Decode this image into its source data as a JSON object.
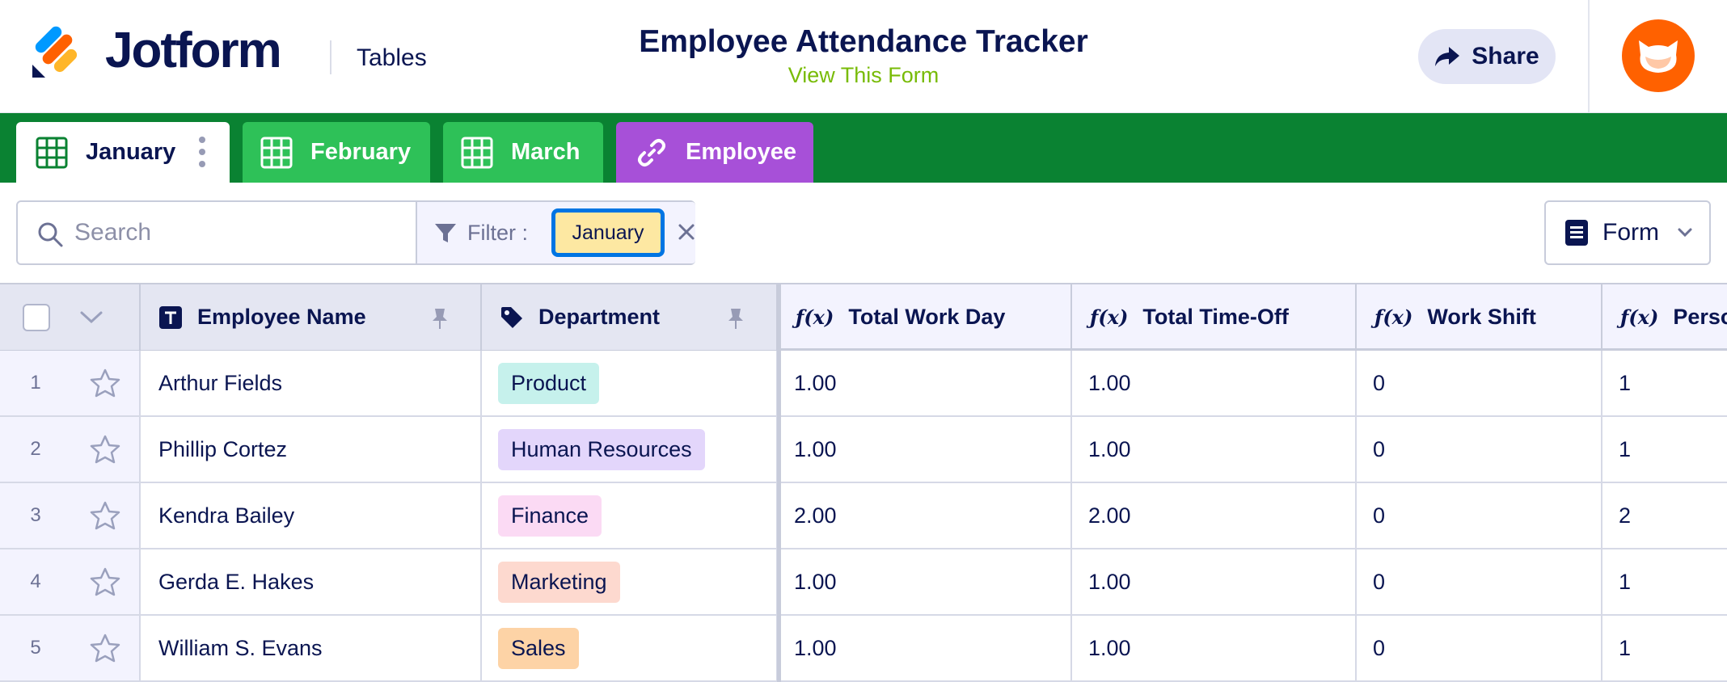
{
  "header": {
    "brand": "Jotform",
    "section": "Tables",
    "title": "Employee Attendance Tracker",
    "view_form": "View This Form",
    "share_label": "Share",
    "avatar_icon": "cat-avatar-icon"
  },
  "tabs": [
    {
      "label": "January",
      "icon": "grid-icon",
      "active": true
    },
    {
      "label": "February",
      "icon": "grid-icon",
      "active": false
    },
    {
      "label": "March",
      "icon": "grid-icon",
      "active": false
    },
    {
      "label": "Employee",
      "icon": "link-icon",
      "active": false
    }
  ],
  "toolbar": {
    "search_placeholder": "Search",
    "filter_label": "Filter :",
    "filter_value": "January",
    "form_label": "Form"
  },
  "table": {
    "columns": [
      {
        "label": "Employee Name",
        "icon": "text-type-icon",
        "pinned": true
      },
      {
        "label": "Department",
        "icon": "tag-icon",
        "pinned": true
      },
      {
        "label": "Total Work Day",
        "icon": "formula-icon"
      },
      {
        "label": "Total Time-Off",
        "icon": "formula-icon"
      },
      {
        "label": "Work Shift",
        "icon": "formula-icon"
      },
      {
        "label": "Person",
        "icon": "formula-icon"
      }
    ],
    "rows": [
      {
        "index": "1",
        "name": "Arthur Fields",
        "department": "Product",
        "dept_color": "#c6f1ec",
        "work_day": "1.00",
        "time_off": "1.00",
        "work_shift": "0",
        "person": "1"
      },
      {
        "index": "2",
        "name": "Phillip Cortez",
        "department": "Human Resources",
        "dept_color": "#e3d6fb",
        "work_day": "1.00",
        "time_off": "1.00",
        "work_shift": "0",
        "person": "1"
      },
      {
        "index": "3",
        "name": "Kendra Bailey",
        "department": "Finance",
        "dept_color": "#fbdaf4",
        "work_day": "2.00",
        "time_off": "2.00",
        "work_shift": "0",
        "person": "2"
      },
      {
        "index": "4",
        "name": "Gerda E. Hakes",
        "department": "Marketing",
        "dept_color": "#fdd9cf",
        "work_day": "1.00",
        "time_off": "1.00",
        "work_shift": "0",
        "person": "1"
      },
      {
        "index": "5",
        "name": "William S. Evans",
        "department": "Sales",
        "dept_color": "#fdd3a6",
        "work_day": "1.00",
        "time_off": "1.00",
        "work_shift": "0",
        "person": "1"
      }
    ]
  },
  "colors": {
    "tabbar_bg": "#0a8232",
    "tab_green": "#2ec158",
    "tab_purple": "#a750d8",
    "accent_link": "#78bb07",
    "avatar": "#ff6100"
  }
}
